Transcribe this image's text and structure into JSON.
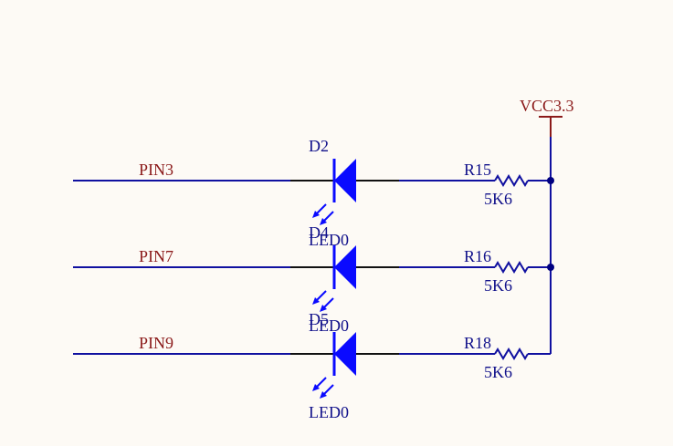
{
  "power": {
    "label": "VCC3.3"
  },
  "rows": [
    {
      "net": "PIN3",
      "diode": {
        "designator": "D2",
        "value": "LED0"
      },
      "resistor": {
        "designator": "R15",
        "value": "5K6"
      }
    },
    {
      "net": "PIN7",
      "diode": {
        "designator": "D4",
        "value": "LED0"
      },
      "resistor": {
        "designator": "R16",
        "value": "5K6"
      }
    },
    {
      "net": "PIN9",
      "diode": {
        "designator": "D5",
        "value": "LED0"
      },
      "resistor": {
        "designator": "R18",
        "value": "5K6"
      }
    }
  ],
  "colors": {
    "background": "#fdfaf5",
    "wire": "#1010a0",
    "pin_line": "#111111",
    "diode_fill": "#0a0aff",
    "net_label": "#8b1a1a",
    "designator": "#10108a",
    "junction": "#000080",
    "power_symbol": "#8b1a1a"
  }
}
